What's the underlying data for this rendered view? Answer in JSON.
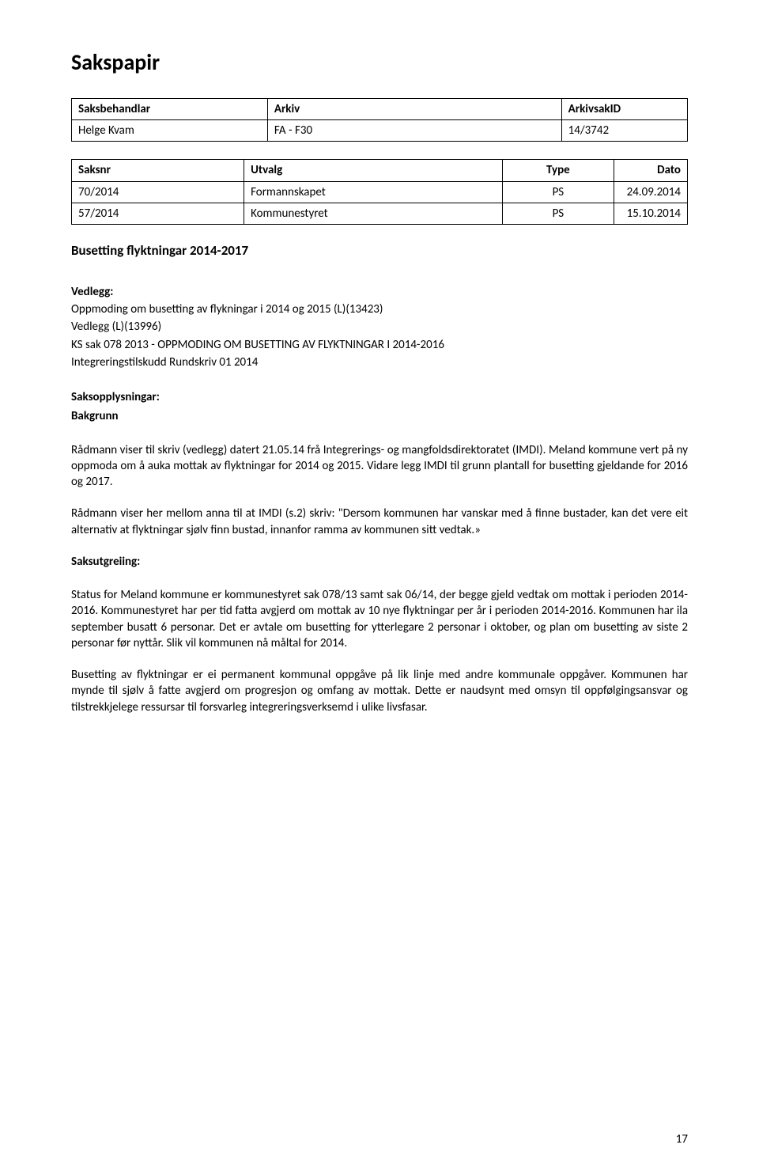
{
  "title": "Sakspapir",
  "table1": {
    "headers": [
      "Saksbehandlar",
      "Arkiv",
      "ArkivsakID"
    ],
    "row": [
      "Helge Kvam",
      "FA - F30",
      "14/3742"
    ]
  },
  "table2": {
    "headers": [
      "Saksnr",
      "Utvalg",
      "Type",
      "Dato"
    ],
    "rows": [
      [
        "70/2014",
        "Formannskapet",
        "PS",
        "24.09.2014"
      ],
      [
        "57/2014",
        "Kommunestyret",
        "PS",
        "15.10.2014"
      ]
    ]
  },
  "subject": "Busetting flyktningar 2014-2017",
  "attachments_head": "Vedlegg:",
  "attachments": [
    "Oppmoding om busetting av flykningar i 2014 og 2015 (L)(13423)",
    "Vedlegg (L)(13996)",
    "KS sak 078 2013 - OPPMODING OM BUSETTING AV FLYKTNINGAR I 2014-2016",
    "Integreringstilskudd Rundskriv 01 2014"
  ],
  "info_head": "Saksopplysningar:",
  "bakgrunn_head": "Bakgrunn",
  "para1": "Rådmann viser til skriv (vedlegg) datert 21.05.14 frå Integrerings- og mangfoldsdirektoratet (IMDI).  Meland kommune vert på ny oppmoda om å auka mottak av flyktningar for 2014 og 2015. Vidare  legg IMDI til grunn plantall for busetting gjeldande for 2016 og 2017.",
  "para2": "Rådmann viser her mellom anna til at IMDI (s.2) skriv: \"Dersom kommunen har vanskar med å finne bustader, kan det vere eit alternativ at flyktningar sjølv finn bustad, innanfor ramma av kommunen sitt vedtak.»",
  "utgr_head": "Saksutgreiing:",
  "para3": "Status for Meland kommune er kommunestyret sak 078/13 samt sak 06/14, der begge gjeld vedtak om mottak i perioden 2014-2016. Kommunestyret har per tid fatta avgjerd om mottak av 10 nye flyktningar per år i perioden 2014-2016. Kommunen har ila september busatt 6 personar. Det er avtale om busetting for ytterlegare 2 personar i oktober, og plan om busetting av siste 2 personar før  nyttår. Slik vil kommunen nå måltal for 2014.",
  "para4": "Busetting av flyktningar er ei permanent kommunal oppgåve på lik linje med andre kommunale oppgåver. Kommunen har mynde til sjølv å fatte avgjerd om progresjon og omfang av mottak. Dette er  naudsynt med omsyn til oppfølgingsansvar og tilstrekkjelege ressursar til forsvarleg integreringsverksemd i ulike livsfasar.",
  "page_number": "17"
}
